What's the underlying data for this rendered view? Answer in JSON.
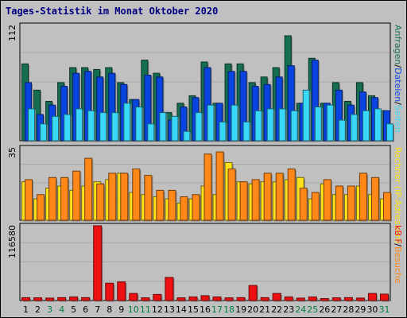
{
  "title": "Tages-Statistik im Monat Oktober 2020",
  "colors": {
    "anfragen": "#166e52",
    "dateien": "#0a44e0",
    "seiten": "#3ad8f8",
    "rechner": "#ffe21a",
    "besuche": "#ff8818",
    "kbf": "#ee1010",
    "weekday_label": "#000000",
    "weekend_label": "#008040"
  },
  "chart_data": [
    {
      "type": "bar",
      "panel": "top",
      "ymax_label": "112",
      "ylim": [
        0,
        112
      ],
      "legend_parts": [
        {
          "text": "Anfragen",
          "color": "#166e52"
        },
        {
          "text": "/",
          "color": "#000000"
        },
        {
          "text": "Dateien",
          "color": "#0a44e0"
        },
        {
          "text": "/",
          "color": "#000000"
        },
        {
          "text": "Seiten",
          "color": "#3ad8f8"
        }
      ],
      "categories": [
        "1",
        "2",
        "3",
        "4",
        "5",
        "6",
        "7",
        "8",
        "9",
        "10",
        "11",
        "12",
        "13",
        "14",
        "15",
        "16",
        "17",
        "18",
        "19",
        "20",
        "21",
        "22",
        "23",
        "24",
        "25",
        "26",
        "27",
        "28",
        "29",
        "30",
        "31"
      ],
      "series": [
        {
          "name": "Anfragen",
          "values": [
            82,
            54,
            42,
            62,
            78,
            78,
            76,
            78,
            62,
            44,
            86,
            72,
            30,
            40,
            48,
            84,
            40,
            82,
            82,
            62,
            68,
            78,
            112,
            40,
            88,
            40,
            62,
            42,
            62,
            48,
            32
          ]
        },
        {
          "name": "Dateien",
          "values": [
            62,
            28,
            38,
            58,
            72,
            74,
            68,
            72,
            60,
            44,
            70,
            68,
            22,
            36,
            46,
            78,
            40,
            74,
            74,
            58,
            60,
            68,
            80,
            40,
            86,
            40,
            54,
            38,
            52,
            46,
            32
          ]
        },
        {
          "name": "Seiten",
          "values": [
            34,
            18,
            26,
            28,
            34,
            32,
            30,
            30,
            40,
            36,
            18,
            30,
            26,
            10,
            30,
            38,
            20,
            38,
            20,
            32,
            34,
            34,
            32,
            54,
            36,
            38,
            22,
            28,
            32,
            34,
            18
          ]
        }
      ]
    },
    {
      "type": "bar",
      "panel": "middle",
      "ymax_label": "35",
      "ylim": [
        0,
        35
      ],
      "legend_parts": [
        {
          "text": "Rechner (IP-Adressen)",
          "color": "#ffe21a"
        },
        {
          "text": "/",
          "color": "#000000"
        },
        {
          "text": "Besuche",
          "color": "#ff8818"
        }
      ],
      "categories": [
        "1",
        "2",
        "3",
        "4",
        "5",
        "6",
        "7",
        "8",
        "9",
        "10",
        "11",
        "12",
        "13",
        "14",
        "15",
        "16",
        "17",
        "18",
        "19",
        "20",
        "21",
        "22",
        "23",
        "24",
        "25",
        "26",
        "27",
        "28",
        "29",
        "30",
        "31"
      ],
      "series": [
        {
          "name": "Rechner (IP-Adressen)",
          "values": [
            18,
            10,
            15,
            16,
            14,
            16,
            18,
            19,
            22,
            13,
            12,
            11,
            10,
            8,
            10,
            16,
            12,
            27,
            18,
            17,
            18,
            18,
            19,
            20,
            10,
            17,
            12,
            12,
            16,
            12,
            10
          ]
        },
        {
          "name": "Besuche",
          "values": [
            19,
            12,
            20,
            20,
            23,
            29,
            17,
            22,
            22,
            24,
            21,
            14,
            14,
            11,
            12,
            31,
            32,
            24,
            18,
            19,
            22,
            22,
            24,
            15,
            13,
            19,
            16,
            16,
            22,
            20,
            13
          ]
        }
      ]
    },
    {
      "type": "bar",
      "panel": "bottom",
      "ymax_label": "116580",
      "ylim": [
        0,
        116580
      ],
      "legend_parts": [
        {
          "text": "kB F",
          "color": "#ee1010"
        }
      ],
      "categories": [
        "1",
        "2",
        "3",
        "4",
        "5",
        "6",
        "7",
        "8",
        "9",
        "10",
        "11",
        "12",
        "13",
        "14",
        "15",
        "16",
        "17",
        "18",
        "19",
        "20",
        "21",
        "22",
        "23",
        "24",
        "25",
        "26",
        "27",
        "28",
        "29",
        "30",
        "31"
      ],
      "weekend_days": [
        "3",
        "4",
        "10",
        "11",
        "17",
        "18",
        "24",
        "25",
        "31"
      ],
      "series": [
        {
          "name": "kB F",
          "values": [
            4500,
            4200,
            3800,
            4500,
            5600,
            4500,
            116580,
            27000,
            29000,
            11000,
            4200,
            9500,
            36000,
            4200,
            5600,
            7500,
            5600,
            4200,
            4500,
            23500,
            4500,
            11000,
            5600,
            3800,
            5600,
            3000,
            4200,
            4500,
            3800,
            11000,
            10000
          ]
        }
      ]
    }
  ]
}
